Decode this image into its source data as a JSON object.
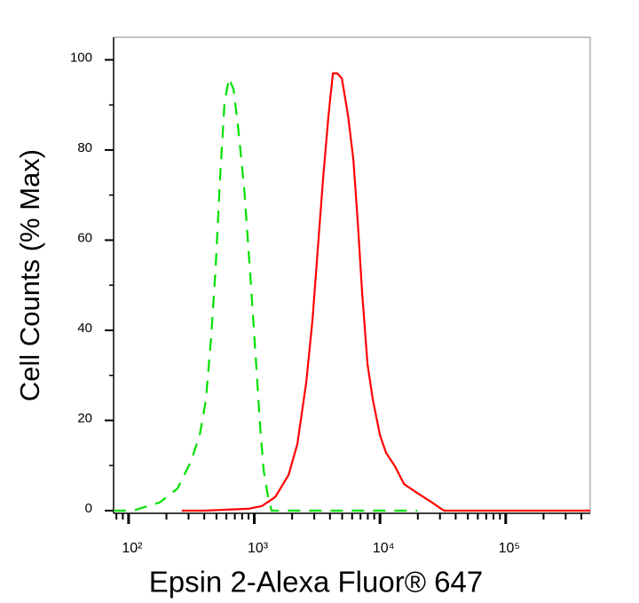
{
  "chart_data": {
    "type": "line",
    "xlabel": "Epsin 2-Alexa Fluor® 647",
    "ylabel": "Cell Counts (% Max)",
    "xscale": "log",
    "xlim": [
      76,
      470000
    ],
    "ylim": [
      -0.6,
      105
    ],
    "xticks": [
      {
        "value": 100,
        "label": "10²"
      },
      {
        "value": 1000,
        "label": "10³"
      },
      {
        "value": 10000,
        "label": "10⁴"
      },
      {
        "value": 100000,
        "label": "10⁵"
      }
    ],
    "xminorticks": [
      80,
      90,
      200,
      300,
      400,
      500,
      600,
      700,
      800,
      900,
      2000,
      3000,
      4000,
      5000,
      6000,
      7000,
      8000,
      9000,
      20000,
      30000,
      40000,
      50000,
      60000,
      70000,
      80000,
      90000,
      200000,
      300000,
      400000
    ],
    "yticks": [
      0,
      20,
      40,
      60,
      80,
      100
    ],
    "yminorticks": [
      10,
      30,
      50,
      70,
      90
    ],
    "series": [
      {
        "color": "#00e000",
        "dash": true,
        "x": [
          76,
          108,
          177,
          245,
          312,
          368,
          412,
          454,
          493,
          535,
          580,
          629,
          683,
          740,
          829,
          930,
          1025,
          1112,
          1187,
          1288,
          1374,
          19800
        ],
        "values": [
          0,
          0,
          1.8,
          4.9,
          10.8,
          16.7,
          24.6,
          38.4,
          54,
          73.8,
          90.5,
          95.9,
          93.5,
          85.6,
          71.9,
          52,
          34.4,
          18.7,
          8.9,
          3,
          0,
          0
        ]
      },
      {
        "color": "#ff0000",
        "dash": false,
        "x": [
          265,
          399,
          899,
          1148,
          1466,
          1872,
          2203,
          2590,
          2903,
          3199,
          3531,
          3891,
          4218,
          4580,
          4970,
          5570,
          6140,
          6655,
          7220,
          7962,
          8776,
          10000,
          11200,
          13180,
          15520,
          19800,
          25300,
          32300,
          470000
        ],
        "values": [
          0,
          0,
          0.4,
          1,
          3,
          7.9,
          14.8,
          28.5,
          42.3,
          58.1,
          73.8,
          87.6,
          97,
          97,
          95.9,
          87.6,
          77.8,
          64,
          48.2,
          32.5,
          24.6,
          16.7,
          12.8,
          9.8,
          5.9,
          3.9,
          2,
          0,
          0
        ]
      }
    ]
  }
}
